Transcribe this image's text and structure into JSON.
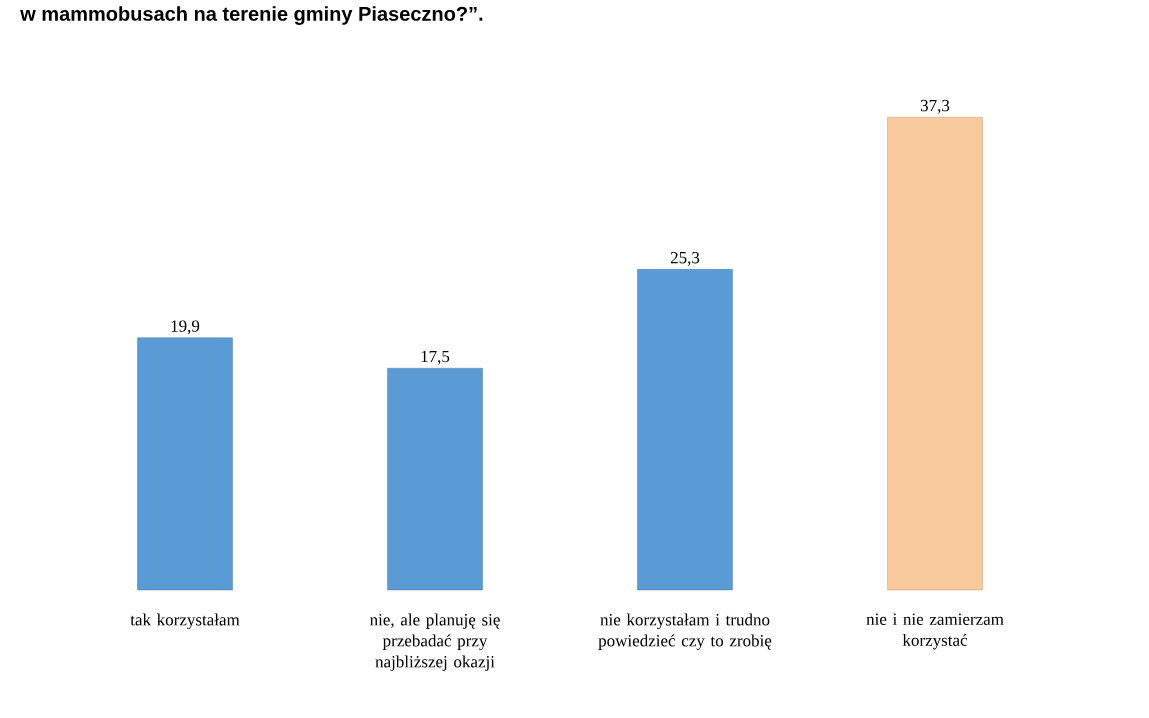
{
  "chart_data": {
    "type": "bar",
    "title": "w mammobusach na terenie gminy Piaseczno?”.",
    "categories": [
      "tak korzystałam",
      "nie, ale planuję się przebadać przy najbliższej okazji",
      "nie korzystałam i trudno powiedzieć czy to zrobię",
      "nie i nie zamierzam korzystać"
    ],
    "values": [
      19.9,
      17.5,
      25.3,
      37.3
    ],
    "value_labels": [
      "19,9",
      "17,5",
      "25,3",
      "37,3"
    ],
    "colors": [
      "#5b9bd5",
      "#5b9bd5",
      "#5b9bd5",
      "#f8c99c"
    ]
  }
}
